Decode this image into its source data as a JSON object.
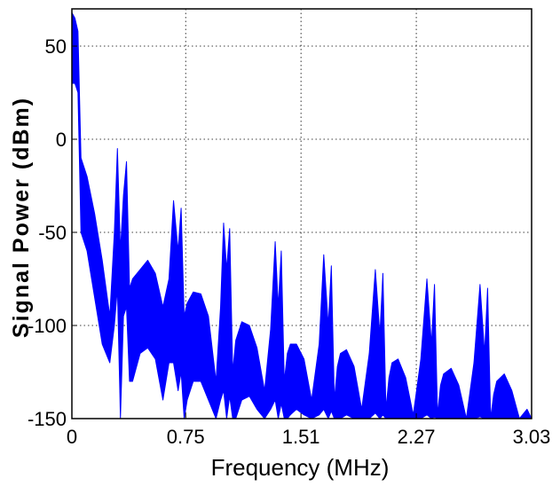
{
  "chart_data": {
    "type": "area",
    "title": "",
    "xlabel": "Frequency (MHz)",
    "ylabel": "Signal Power (dBm)",
    "xlim": [
      0,
      3.03
    ],
    "ylim": [
      -150,
      70
    ],
    "xticks": [
      0,
      0.75,
      1.51,
      2.27,
      3.03
    ],
    "xtick_labels": [
      "0",
      "0.75",
      "1.51",
      "2.27",
      "3.03"
    ],
    "yticks": [
      -150,
      -100,
      -50,
      0,
      50
    ],
    "ytick_labels": [
      "-150",
      "-100",
      "-50",
      "0",
      "50"
    ],
    "grid": true,
    "legend": "none",
    "series_color": "#0000ff",
    "spectrum_envelope": {
      "x": [
        0.0,
        0.02,
        0.04,
        0.06,
        0.1,
        0.15,
        0.2,
        0.25,
        0.28,
        0.3,
        0.32,
        0.34,
        0.36,
        0.38,
        0.4,
        0.45,
        0.5,
        0.55,
        0.6,
        0.64,
        0.67,
        0.7,
        0.72,
        0.74,
        0.76,
        0.8,
        0.85,
        0.9,
        0.95,
        0.98,
        1.0,
        1.02,
        1.04,
        1.06,
        1.08,
        1.12,
        1.17,
        1.22,
        1.27,
        1.31,
        1.34,
        1.36,
        1.38,
        1.4,
        1.42,
        1.44,
        1.48,
        1.53,
        1.58,
        1.63,
        1.66,
        1.69,
        1.71,
        1.73,
        1.75,
        1.77,
        1.81,
        1.86,
        1.91,
        1.96,
        2.0,
        2.03,
        2.05,
        2.07,
        2.09,
        2.11,
        2.15,
        2.2,
        2.25,
        2.3,
        2.34,
        2.37,
        2.39,
        2.41,
        2.43,
        2.45,
        2.5,
        2.55,
        2.6,
        2.65,
        2.69,
        2.72,
        2.74,
        2.76,
        2.78,
        2.8,
        2.85,
        2.9,
        2.95,
        3.0,
        3.03
      ],
      "upper": [
        68,
        65,
        58,
        -10,
        -20,
        -40,
        -65,
        -95,
        -50,
        -5,
        -60,
        -30,
        -12,
        -80,
        -75,
        -70,
        -65,
        -72,
        -90,
        -75,
        -33,
        -60,
        -37,
        -95,
        -88,
        -82,
        -83,
        -95,
        -130,
        -90,
        -45,
        -70,
        -48,
        -125,
        -108,
        -98,
        -100,
        -112,
        -135,
        -102,
        -55,
        -90,
        -60,
        -130,
        -115,
        -110,
        -110,
        -118,
        -140,
        -110,
        -62,
        -100,
        -68,
        -140,
        -122,
        -115,
        -113,
        -122,
        -145,
        -115,
        -70,
        -105,
        -72,
        -145,
        -128,
        -120,
        -118,
        -128,
        -148,
        -118,
        -75,
        -110,
        -78,
        -148,
        -132,
        -126,
        -123,
        -132,
        -150,
        -120,
        -78,
        -115,
        -80,
        -150,
        -137,
        -130,
        -126,
        -135,
        -150,
        -145,
        -150
      ],
      "lower": [
        30,
        30,
        25,
        -50,
        -60,
        -85,
        -110,
        -120,
        -100,
        -80,
        -150,
        -95,
        -90,
        -130,
        -130,
        -115,
        -112,
        -118,
        -140,
        -120,
        -120,
        -135,
        -125,
        -150,
        -140,
        -130,
        -130,
        -140,
        -150,
        -140,
        -135,
        -150,
        -138,
        -150,
        -150,
        -140,
        -138,
        -145,
        -150,
        -145,
        -140,
        -150,
        -142,
        -150,
        -150,
        -148,
        -145,
        -148,
        -150,
        -148,
        -145,
        -150,
        -146,
        -150,
        -150,
        -150,
        -148,
        -150,
        -150,
        -150,
        -147,
        -150,
        -148,
        -150,
        -150,
        -150,
        -150,
        -150,
        -150,
        -150,
        -148,
        -150,
        -149,
        -150,
        -150,
        -150,
        -150,
        -150,
        -150,
        -150,
        -149,
        -150,
        -150,
        -150,
        -150,
        -150,
        -150,
        -150,
        -150,
        -150,
        -150
      ]
    }
  }
}
